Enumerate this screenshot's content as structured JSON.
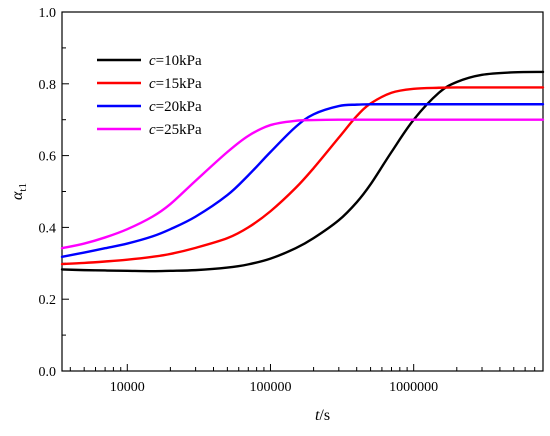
{
  "chart_data": {
    "type": "line",
    "xlabel": "t/s",
    "ylabel": "α_t1",
    "x_scale": "log",
    "xlim": [
      3500,
      8000000
    ],
    "ylim": [
      0.0,
      1.0
    ],
    "x_ticks": [
      10000,
      100000,
      1000000
    ],
    "x_tick_labels": [
      "10000",
      "100000",
      "1000000"
    ],
    "y_ticks": [
      0.0,
      0.2,
      0.4,
      0.6,
      0.8,
      1.0
    ],
    "y_tick_labels": [
      "0.0",
      "0.2",
      "0.4",
      "0.6",
      "0.8",
      "1.0"
    ],
    "grid": false,
    "legend_position": "top-left",
    "series": [
      {
        "name": "c=10kPa",
        "color": "#000000",
        "x": [
          3500,
          5000,
          7000,
          10000,
          15000,
          20000,
          30000,
          50000,
          70000,
          100000,
          150000,
          200000,
          300000,
          400000,
          500000,
          700000,
          1000000,
          1500000,
          2000000,
          3000000,
          5000000,
          8000000
        ],
        "y": [
          0.283,
          0.281,
          0.28,
          0.279,
          0.278,
          0.279,
          0.281,
          0.288,
          0.297,
          0.313,
          0.342,
          0.37,
          0.42,
          0.47,
          0.52,
          0.61,
          0.7,
          0.775,
          0.805,
          0.825,
          0.832,
          0.833
        ]
      },
      {
        "name": "c=15kPa",
        "color": "#ff0000",
        "x": [
          3500,
          5000,
          7000,
          10000,
          15000,
          20000,
          30000,
          50000,
          70000,
          100000,
          150000,
          200000,
          300000,
          400000,
          500000,
          700000,
          1000000,
          1500000,
          2000000,
          3000000,
          5000000,
          8000000
        ],
        "y": [
          0.298,
          0.301,
          0.305,
          0.31,
          0.318,
          0.326,
          0.343,
          0.37,
          0.4,
          0.445,
          0.51,
          0.565,
          0.65,
          0.71,
          0.745,
          0.775,
          0.786,
          0.789,
          0.79,
          0.79,
          0.79,
          0.79
        ]
      },
      {
        "name": "c=20kPa",
        "color": "#0000ff",
        "x": [
          3500,
          5000,
          7000,
          10000,
          15000,
          20000,
          30000,
          50000,
          70000,
          100000,
          150000,
          200000,
          300000,
          400000,
          500000,
          700000,
          1000000,
          1500000,
          2000000,
          3000000,
          5000000,
          8000000
        ],
        "y": [
          0.318,
          0.33,
          0.342,
          0.355,
          0.375,
          0.395,
          0.43,
          0.49,
          0.545,
          0.61,
          0.68,
          0.715,
          0.738,
          0.742,
          0.743,
          0.743,
          0.743,
          0.743,
          0.743,
          0.743,
          0.743,
          0.743
        ]
      },
      {
        "name": "c=25kPa",
        "color": "#ff00ff",
        "x": [
          3500,
          5000,
          7000,
          10000,
          15000,
          20000,
          30000,
          50000,
          70000,
          100000,
          150000,
          200000,
          300000,
          400000,
          500000,
          700000,
          1000000,
          1500000,
          2000000,
          3000000,
          5000000,
          8000000
        ],
        "y": [
          0.342,
          0.355,
          0.372,
          0.395,
          0.43,
          0.465,
          0.53,
          0.61,
          0.655,
          0.685,
          0.697,
          0.699,
          0.7,
          0.7,
          0.7,
          0.7,
          0.7,
          0.7,
          0.7,
          0.7,
          0.7,
          0.7
        ]
      }
    ]
  }
}
